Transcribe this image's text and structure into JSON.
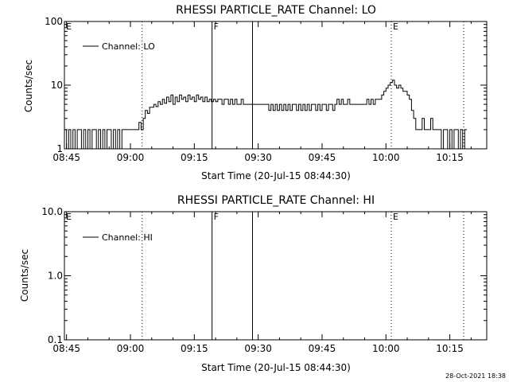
{
  "chart_data": [
    {
      "type": "line",
      "title": "RHESSI PARTICLE_RATE Channel: LO",
      "xlabel": "Start Time (20-Jul-15 08:44:30)",
      "ylabel": "Counts/sec",
      "yscale": "log",
      "ylim": [
        1,
        100
      ],
      "xlim": [
        "08:44:30",
        "10:23:40"
      ],
      "x_ticks": [
        "08:45",
        "09:00",
        "09:15",
        "09:30",
        "09:45",
        "10:00",
        "10:15"
      ],
      "y_ticks": [
        "1",
        "10",
        "100"
      ],
      "legend": {
        "entries": [
          "Channel: LO"
        ],
        "placement": "top-left"
      },
      "grid": false,
      "markers": [
        {
          "label": "E",
          "time": "08:44:30",
          "style": "dotted"
        },
        {
          "label": "",
          "time": "09:02:45",
          "style": "dotted"
        },
        {
          "label": "F",
          "time": "09:19:10",
          "style": "solid"
        },
        {
          "label": "",
          "time": "09:28:40",
          "style": "solid"
        },
        {
          "label": "E",
          "time": "10:01:15",
          "style": "dotted"
        },
        {
          "label": "",
          "time": "10:18:15",
          "style": "dotted"
        }
      ],
      "series": [
        {
          "name": "Channel: LO",
          "points": [
            [
              "08:44:30",
              2
            ],
            [
              "08:45:00",
              1
            ],
            [
              "08:45:30",
              2
            ],
            [
              "08:46:00",
              1
            ],
            [
              "08:46:30",
              2
            ],
            [
              "08:47:00",
              1
            ],
            [
              "08:47:30",
              2
            ],
            [
              "08:48:00",
              2
            ],
            [
              "08:48:30",
              1
            ],
            [
              "08:49:00",
              2
            ],
            [
              "08:49:30",
              1
            ],
            [
              "08:50:00",
              2
            ],
            [
              "08:50:30",
              1
            ],
            [
              "08:51:00",
              2
            ],
            [
              "08:51:30",
              2
            ],
            [
              "08:52:00",
              1
            ],
            [
              "08:52:30",
              2
            ],
            [
              "08:53:00",
              1
            ],
            [
              "08:53:30",
              2
            ],
            [
              "08:54:00",
              1
            ],
            [
              "08:54:30",
              2
            ],
            [
              "08:55:00",
              2
            ],
            [
              "08:55:30",
              1
            ],
            [
              "08:56:00",
              2
            ],
            [
              "08:56:30",
              1
            ],
            [
              "08:57:00",
              2
            ],
            [
              "08:57:30",
              1
            ],
            [
              "08:58:00",
              2
            ],
            [
              "08:58:30",
              2
            ],
            [
              "08:59:00",
              2
            ],
            [
              "08:59:30",
              2
            ],
            [
              "09:00:00",
              2
            ],
            [
              "09:01:00",
              2
            ],
            [
              "09:01:30",
              2
            ],
            [
              "09:02:00",
              2.6
            ],
            [
              "09:02:30",
              2
            ],
            [
              "09:03:00",
              3
            ],
            [
              "09:03:30",
              4
            ],
            [
              "09:04:00",
              3.6
            ],
            [
              "09:04:30",
              4.5
            ],
            [
              "09:05:00",
              4.5
            ],
            [
              "09:05:30",
              5
            ],
            [
              "09:06:00",
              4.6
            ],
            [
              "09:06:30",
              5.5
            ],
            [
              "09:07:00",
              5
            ],
            [
              "09:07:30",
              6
            ],
            [
              "09:08:00",
              5.2
            ],
            [
              "09:08:30",
              6.5
            ],
            [
              "09:09:00",
              5.5
            ],
            [
              "09:09:30",
              7
            ],
            [
              "09:10:00",
              5
            ],
            [
              "09:10:30",
              6.5
            ],
            [
              "09:11:00",
              5.5
            ],
            [
              "09:11:30",
              7
            ],
            [
              "09:12:00",
              6
            ],
            [
              "09:12:30",
              6.5
            ],
            [
              "09:13:00",
              5.5
            ],
            [
              "09:13:30",
              7
            ],
            [
              "09:14:00",
              6
            ],
            [
              "09:14:30",
              6.5
            ],
            [
              "09:15:00",
              5.5
            ],
            [
              "09:15:30",
              7
            ],
            [
              "09:16:00",
              6
            ],
            [
              "09:16:30",
              6.5
            ],
            [
              "09:17:00",
              5.5
            ],
            [
              "09:17:30",
              6.5
            ],
            [
              "09:18:00",
              5.5
            ],
            [
              "09:18:30",
              6
            ],
            [
              "09:19:00",
              5.5
            ],
            [
              "09:19:30",
              6
            ],
            [
              "09:20:00",
              5.5
            ],
            [
              "09:20:30",
              6
            ],
            [
              "09:21:00",
              6
            ],
            [
              "09:21:30",
              5
            ],
            [
              "09:22:00",
              6
            ],
            [
              "09:22:30",
              6
            ],
            [
              "09:23:00",
              5
            ],
            [
              "09:23:30",
              6
            ],
            [
              "09:24:00",
              5
            ],
            [
              "09:24:30",
              6
            ],
            [
              "09:25:00",
              5
            ],
            [
              "09:25:30",
              5
            ],
            [
              "09:26:00",
              6
            ],
            [
              "09:26:30",
              5
            ],
            [
              "09:27:00",
              5
            ],
            [
              "09:28:00",
              5
            ],
            [
              "09:29:00",
              5
            ],
            [
              "09:30:00",
              5
            ],
            [
              "09:31:00",
              5
            ],
            [
              "09:32:00",
              5
            ],
            [
              "09:32:30",
              4
            ],
            [
              "09:33:00",
              5
            ],
            [
              "09:33:30",
              4
            ],
            [
              "09:34:00",
              5
            ],
            [
              "09:34:30",
              4
            ],
            [
              "09:35:00",
              5
            ],
            [
              "09:35:30",
              4
            ],
            [
              "09:36:00",
              5
            ],
            [
              "09:36:30",
              4
            ],
            [
              "09:37:00",
              5
            ],
            [
              "09:37:30",
              4
            ],
            [
              "09:38:00",
              5
            ],
            [
              "09:38:30",
              5
            ],
            [
              "09:39:00",
              4
            ],
            [
              "09:39:30",
              5
            ],
            [
              "09:40:00",
              4
            ],
            [
              "09:40:30",
              5
            ],
            [
              "09:41:00",
              4
            ],
            [
              "09:41:30",
              5
            ],
            [
              "09:42:00",
              4
            ],
            [
              "09:42:30",
              5
            ],
            [
              "09:43:00",
              5
            ],
            [
              "09:43:30",
              4
            ],
            [
              "09:44:00",
              5
            ],
            [
              "09:44:30",
              4
            ],
            [
              "09:45:00",
              5
            ],
            [
              "09:45:30",
              5
            ],
            [
              "09:46:00",
              4
            ],
            [
              "09:46:30",
              5
            ],
            [
              "09:47:00",
              5
            ],
            [
              "09:47:30",
              4
            ],
            [
              "09:48:00",
              5
            ],
            [
              "09:48:30",
              6
            ],
            [
              "09:49:00",
              5
            ],
            [
              "09:49:30",
              6
            ],
            [
              "09:50:00",
              5
            ],
            [
              "09:50:30",
              5
            ],
            [
              "09:51:00",
              6
            ],
            [
              "09:51:30",
              5
            ],
            [
              "09:52:00",
              5
            ],
            [
              "09:53:00",
              5
            ],
            [
              "09:54:00",
              5
            ],
            [
              "09:55:00",
              5
            ],
            [
              "09:55:30",
              6
            ],
            [
              "09:56:00",
              5
            ],
            [
              "09:56:30",
              6
            ],
            [
              "09:57:00",
              5
            ],
            [
              "09:57:30",
              6
            ],
            [
              "09:58:00",
              6
            ],
            [
              "09:58:30",
              6
            ],
            [
              "09:59:00",
              7
            ],
            [
              "09:59:30",
              8
            ],
            [
              "10:00:00",
              9
            ],
            [
              "10:00:30",
              10
            ],
            [
              "10:01:00",
              11
            ],
            [
              "10:01:30",
              12
            ],
            [
              "10:02:00",
              10
            ],
            [
              "10:02:30",
              9
            ],
            [
              "10:03:00",
              10
            ],
            [
              "10:03:30",
              9
            ],
            [
              "10:04:00",
              8
            ],
            [
              "10:04:30",
              8
            ],
            [
              "10:05:00",
              7
            ],
            [
              "10:05:30",
              6
            ],
            [
              "10:06:00",
              4
            ],
            [
              "10:06:30",
              3
            ],
            [
              "10:07:00",
              2
            ],
            [
              "10:08:00",
              2
            ],
            [
              "10:08:30",
              3
            ],
            [
              "10:09:00",
              2
            ],
            [
              "10:09:30",
              2
            ],
            [
              "10:10:00",
              2
            ],
            [
              "10:10:30",
              3
            ],
            [
              "10:11:00",
              2
            ],
            [
              "10:11:30",
              2
            ],
            [
              "10:12:00",
              2
            ],
            [
              "10:12:30",
              2
            ],
            [
              "10:13:00",
              1
            ],
            [
              "10:13:30",
              2
            ],
            [
              "10:14:00",
              2
            ],
            [
              "10:14:30",
              1
            ],
            [
              "10:15:00",
              2
            ],
            [
              "10:15:30",
              1
            ],
            [
              "10:16:00",
              2
            ],
            [
              "10:16:30",
              2
            ],
            [
              "10:17:00",
              1
            ],
            [
              "10:17:30",
              2
            ],
            [
              "10:18:00",
              1
            ],
            [
              "10:18:30",
              2
            ],
            [
              "10:19:00",
              2
            ]
          ]
        }
      ]
    },
    {
      "type": "line",
      "title": "RHESSI PARTICLE_RATE Channel: HI",
      "xlabel": "Start Time (20-Jul-15 08:44:30)",
      "ylabel": "Counts/sec",
      "yscale": "log",
      "ylim": [
        0.1,
        10
      ],
      "xlim": [
        "08:44:30",
        "10:23:40"
      ],
      "x_ticks": [
        "08:45",
        "09:00",
        "09:15",
        "09:30",
        "09:45",
        "10:00",
        "10:15"
      ],
      "y_ticks": [
        "0.1",
        "1.0",
        "10.0"
      ],
      "legend": {
        "entries": [
          "Channel: HI"
        ],
        "placement": "top-left"
      },
      "grid": false,
      "markers": [
        {
          "label": "E",
          "time": "08:44:30",
          "style": "dotted"
        },
        {
          "label": "",
          "time": "09:02:45",
          "style": "dotted"
        },
        {
          "label": "F",
          "time": "09:19:10",
          "style": "solid"
        },
        {
          "label": "",
          "time": "09:28:40",
          "style": "solid"
        },
        {
          "label": "E",
          "time": "10:01:15",
          "style": "dotted"
        },
        {
          "label": "",
          "time": "10:18:15",
          "style": "dotted"
        }
      ],
      "series": [
        {
          "name": "Channel: HI",
          "points": []
        }
      ]
    }
  ],
  "footer": {
    "stamp": "28-Oct-2021 18:38"
  }
}
